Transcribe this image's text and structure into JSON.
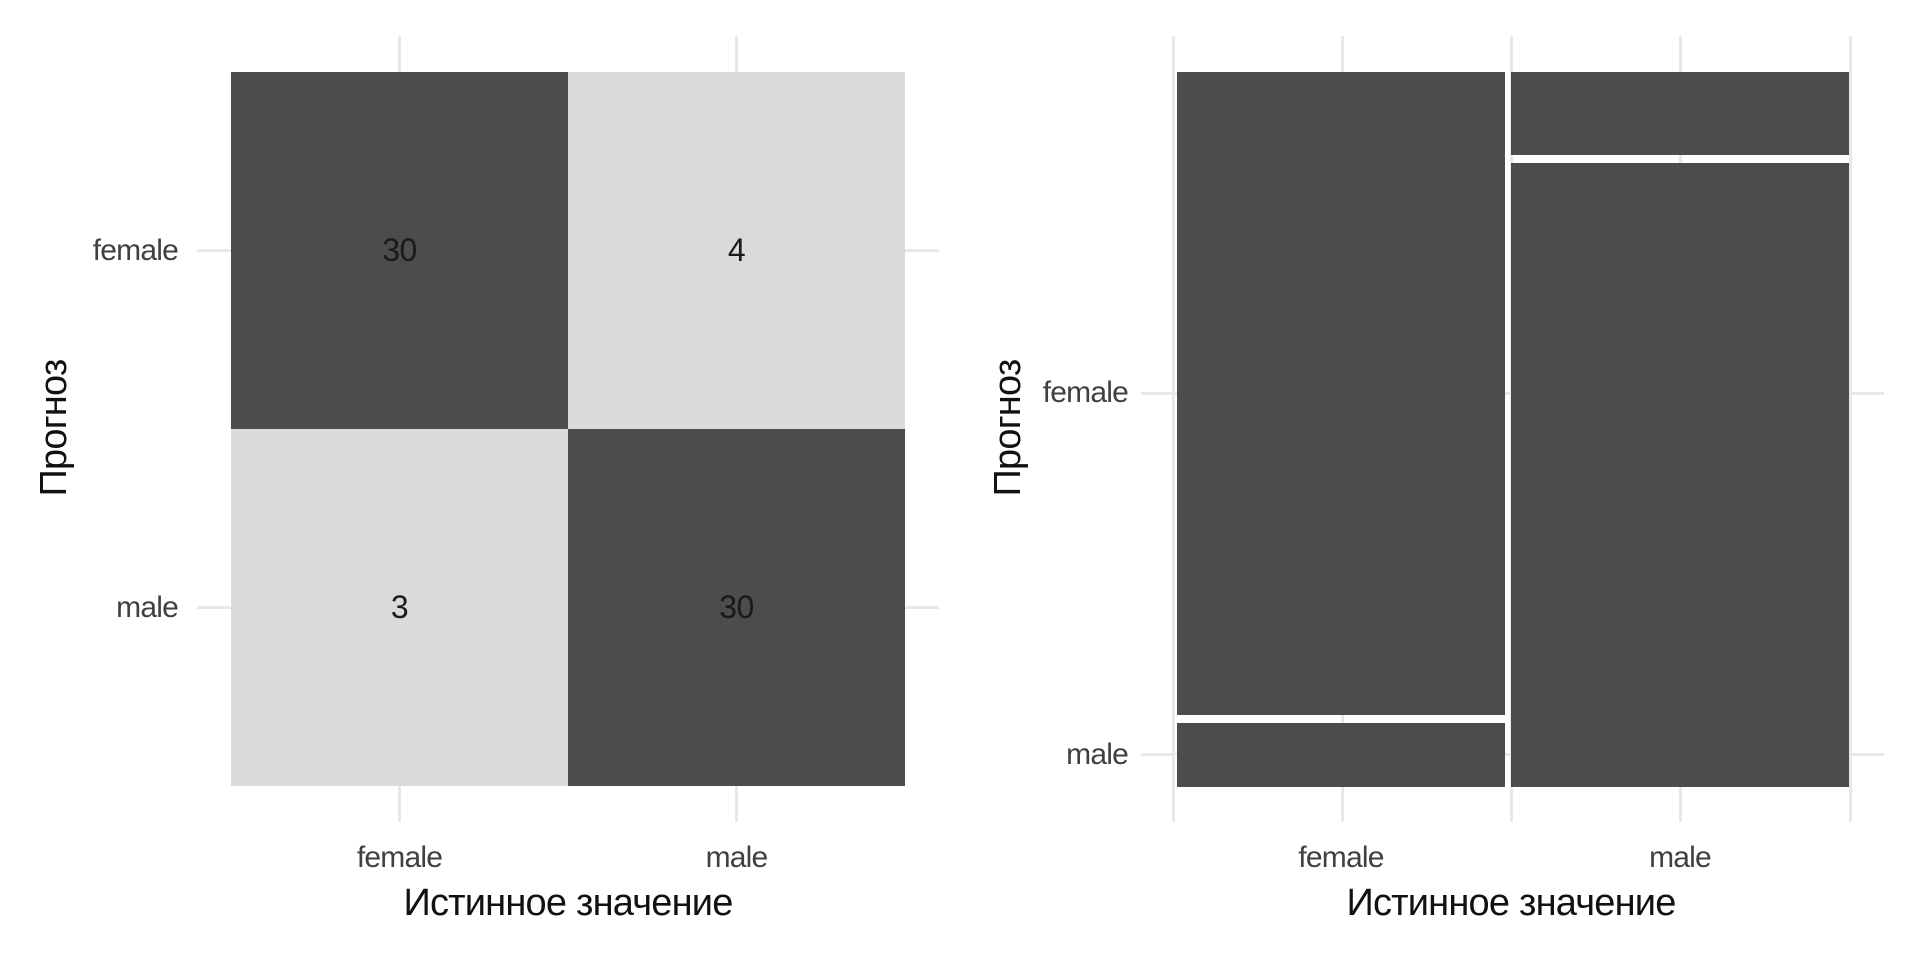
{
  "page": {
    "background": "#ffffff"
  },
  "colors": {
    "dark_fill": "#4c4c4c",
    "light_fill": "#dadada",
    "grid": "#e8e8e8",
    "tick_text": "#404040",
    "title_text": "#111111",
    "value_text": "#1a1a1a"
  },
  "chart_data": [
    {
      "type": "heatmap",
      "name": "confusion-matrix",
      "title": "",
      "xlabel": "Истинное значение",
      "ylabel": "Прогноз",
      "x_categories": [
        "female",
        "male"
      ],
      "y_categories_top_to_bottom": [
        "female",
        "male"
      ],
      "grid": "stubs-outside-tiles",
      "legend": "none",
      "cells": [
        {
          "true": "female",
          "pred": "female",
          "value": 30,
          "fill": "dark"
        },
        {
          "true": "male",
          "pred": "female",
          "value": 4,
          "fill": "light"
        },
        {
          "true": "female",
          "pred": "male",
          "value": 3,
          "fill": "light"
        },
        {
          "true": "male",
          "pred": "male",
          "value": 30,
          "fill": "dark"
        }
      ]
    },
    {
      "type": "mosaic",
      "name": "mosaic-plot",
      "title": "",
      "xlabel": "Истинное значение",
      "ylabel": "Прогноз",
      "x_categories": [
        "female",
        "male"
      ],
      "y_tick_labels_top_to_bottom": [
        "female",
        "male"
      ],
      "grid": "stubs-outside-rects",
      "legend": "none",
      "columns": [
        {
          "category": "female",
          "total": 33,
          "segments_top_to_bottom": [
            {
              "pred": "female",
              "value": 30
            },
            {
              "pred": "male",
              "value": 3
            }
          ]
        },
        {
          "category": "male",
          "total": 34,
          "segments_top_to_bottom": [
            {
              "pred": "female",
              "value": 4
            },
            {
              "pred": "male",
              "value": 30
            }
          ]
        }
      ]
    }
  ]
}
